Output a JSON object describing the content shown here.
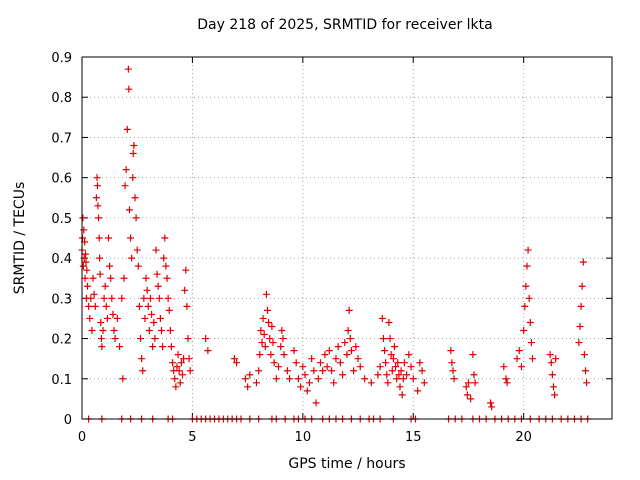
{
  "chart_data": {
    "type": "scatter",
    "title": "Day 218 of 2025, SRMTID for receiver lkta",
    "xlabel": "GPS time / hours",
    "ylabel": "SRMTID / TECUs",
    "xlim": [
      0,
      24
    ],
    "ylim": [
      0,
      0.9
    ],
    "xticks": [
      0,
      5,
      10,
      15,
      20
    ],
    "yticks": [
      0,
      0.1,
      0.2,
      0.3,
      0.4,
      0.5,
      0.6,
      0.7,
      0.8,
      0.9
    ],
    "ytick_labels": [
      "0",
      "0.1",
      "0.2",
      "0.3",
      "0.4",
      "0.5",
      "0.6",
      "0.7",
      "0.8",
      "0.9"
    ],
    "grid": true,
    "marker": "+",
    "color": "#e00000",
    "series": [
      {
        "name": "SRMTID",
        "points": [
          [
            0.0,
            0.42
          ],
          [
            0.02,
            0.45
          ],
          [
            0.04,
            0.5
          ],
          [
            0.06,
            0.38
          ],
          [
            0.08,
            0.47
          ],
          [
            0.1,
            0.4
          ],
          [
            0.12,
            0.44
          ],
          [
            0.14,
            0.35
          ],
          [
            0.16,
            0.41
          ],
          [
            0.18,
            0.39
          ],
          [
            0.2,
            0.3
          ],
          [
            0.22,
            0.37
          ],
          [
            0.25,
            0.33
          ],
          [
            0.3,
            0.28
          ],
          [
            0.35,
            0.25
          ],
          [
            0.4,
            0.3
          ],
          [
            0.45,
            0.22
          ],
          [
            0.5,
            0.35
          ],
          [
            0.55,
            0.31
          ],
          [
            0.6,
            0.28
          ],
          [
            0.65,
            0.55
          ],
          [
            0.68,
            0.6
          ],
          [
            0.7,
            0.58
          ],
          [
            0.72,
            0.53
          ],
          [
            0.75,
            0.5
          ],
          [
            0.78,
            0.45
          ],
          [
            0.8,
            0.4
          ],
          [
            0.82,
            0.36
          ],
          [
            0.85,
            0.24
          ],
          [
            0.88,
            0.2
          ],
          [
            0.9,
            0.18
          ],
          [
            0.95,
            0.22
          ],
          [
            1.0,
            0.3
          ],
          [
            1.05,
            0.33
          ],
          [
            1.1,
            0.28
          ],
          [
            1.15,
            0.25
          ],
          [
            1.2,
            0.45
          ],
          [
            1.25,
            0.38
          ],
          [
            1.3,
            0.35
          ],
          [
            1.35,
            0.3
          ],
          [
            1.4,
            0.26
          ],
          [
            1.45,
            0.22
          ],
          [
            1.5,
            0.2
          ],
          [
            1.6,
            0.25
          ],
          [
            1.7,
            0.18
          ],
          [
            1.8,
            0.3
          ],
          [
            1.85,
            0.1
          ],
          [
            1.9,
            0.35
          ],
          [
            1.95,
            0.58
          ],
          [
            2.0,
            0.62
          ],
          [
            2.05,
            0.72
          ],
          [
            2.1,
            0.87
          ],
          [
            2.12,
            0.82
          ],
          [
            2.15,
            0.52
          ],
          [
            2.2,
            0.45
          ],
          [
            2.25,
            0.4
          ],
          [
            2.3,
            0.6
          ],
          [
            2.32,
            0.66
          ],
          [
            2.35,
            0.68
          ],
          [
            2.4,
            0.55
          ],
          [
            2.45,
            0.5
          ],
          [
            2.5,
            0.42
          ],
          [
            2.55,
            0.38
          ],
          [
            2.6,
            0.28
          ],
          [
            2.65,
            0.2
          ],
          [
            2.7,
            0.15
          ],
          [
            2.75,
            0.12
          ],
          [
            2.8,
            0.3
          ],
          [
            2.85,
            0.25
          ],
          [
            2.9,
            0.35
          ],
          [
            2.95,
            0.32
          ],
          [
            3.0,
            0.28
          ],
          [
            3.05,
            0.22
          ],
          [
            3.1,
            0.3
          ],
          [
            3.15,
            0.26
          ],
          [
            3.2,
            0.18
          ],
          [
            3.25,
            0.24
          ],
          [
            3.3,
            0.2
          ],
          [
            3.35,
            0.42
          ],
          [
            3.4,
            0.36
          ],
          [
            3.45,
            0.33
          ],
          [
            3.5,
            0.3
          ],
          [
            3.55,
            0.25
          ],
          [
            3.6,
            0.22
          ],
          [
            3.65,
            0.18
          ],
          [
            3.7,
            0.4
          ],
          [
            3.75,
            0.45
          ],
          [
            3.8,
            0.38
          ],
          [
            3.85,
            0.35
          ],
          [
            3.9,
            0.3
          ],
          [
            3.95,
            0.27
          ],
          [
            4.0,
            0.22
          ],
          [
            4.05,
            0.18
          ],
          [
            4.1,
            0.14
          ],
          [
            4.15,
            0.12
          ],
          [
            4.2,
            0.1
          ],
          [
            4.25,
            0.08
          ],
          [
            4.3,
            0.13
          ],
          [
            4.35,
            0.16
          ],
          [
            4.4,
            0.12
          ],
          [
            4.45,
            0.09
          ],
          [
            4.5,
            0.14
          ],
          [
            4.55,
            0.11
          ],
          [
            4.6,
            0.15
          ],
          [
            4.65,
            0.32
          ],
          [
            4.7,
            0.37
          ],
          [
            4.75,
            0.28
          ],
          [
            4.8,
            0.2
          ],
          [
            4.85,
            0.15
          ],
          [
            4.9,
            0.12
          ],
          [
            5.6,
            0.2
          ],
          [
            5.7,
            0.17
          ],
          [
            6.9,
            0.15
          ],
          [
            7.0,
            0.14
          ],
          [
            7.4,
            0.1
          ],
          [
            7.5,
            0.08
          ],
          [
            7.6,
            0.11
          ],
          [
            7.9,
            0.09
          ],
          [
            8.0,
            0.12
          ],
          [
            8.05,
            0.16
          ],
          [
            8.1,
            0.22
          ],
          [
            8.15,
            0.19
          ],
          [
            8.2,
            0.25
          ],
          [
            8.25,
            0.21
          ],
          [
            8.3,
            0.18
          ],
          [
            8.35,
            0.31
          ],
          [
            8.4,
            0.27
          ],
          [
            8.45,
            0.24
          ],
          [
            8.5,
            0.2
          ],
          [
            8.55,
            0.16
          ],
          [
            8.6,
            0.23
          ],
          [
            8.65,
            0.19
          ],
          [
            8.7,
            0.14
          ],
          [
            8.8,
            0.1
          ],
          [
            8.9,
            0.13
          ],
          [
            9.0,
            0.18
          ],
          [
            9.05,
            0.22
          ],
          [
            9.1,
            0.2
          ],
          [
            9.15,
            0.16
          ],
          [
            9.3,
            0.12
          ],
          [
            9.4,
            0.1
          ],
          [
            9.6,
            0.17
          ],
          [
            9.7,
            0.14
          ],
          [
            9.8,
            0.1
          ],
          [
            9.9,
            0.08
          ],
          [
            10.0,
            0.13
          ],
          [
            10.1,
            0.11
          ],
          [
            10.2,
            0.07
          ],
          [
            10.3,
            0.09
          ],
          [
            10.4,
            0.15
          ],
          [
            10.5,
            0.12
          ],
          [
            10.6,
            0.04
          ],
          [
            10.7,
            0.1
          ],
          [
            10.8,
            0.14
          ],
          [
            10.9,
            0.12
          ],
          [
            11.0,
            0.16
          ],
          [
            11.1,
            0.13
          ],
          [
            11.2,
            0.17
          ],
          [
            11.3,
            0.12
          ],
          [
            11.4,
            0.09
          ],
          [
            11.5,
            0.15
          ],
          [
            11.6,
            0.18
          ],
          [
            11.7,
            0.14
          ],
          [
            11.8,
            0.11
          ],
          [
            11.9,
            0.19
          ],
          [
            12.0,
            0.16
          ],
          [
            12.05,
            0.22
          ],
          [
            12.1,
            0.27
          ],
          [
            12.15,
            0.2
          ],
          [
            12.2,
            0.17
          ],
          [
            12.3,
            0.12
          ],
          [
            12.4,
            0.18
          ],
          [
            12.5,
            0.15
          ],
          [
            12.6,
            0.13
          ],
          [
            12.8,
            0.1
          ],
          [
            13.1,
            0.09
          ],
          [
            13.4,
            0.11
          ],
          [
            13.5,
            0.13
          ],
          [
            13.6,
            0.25
          ],
          [
            13.65,
            0.2
          ],
          [
            13.7,
            0.17
          ],
          [
            13.75,
            0.14
          ],
          [
            13.8,
            0.11
          ],
          [
            13.85,
            0.09
          ],
          [
            13.9,
            0.24
          ],
          [
            13.95,
            0.2
          ],
          [
            14.0,
            0.16
          ],
          [
            14.05,
            0.12
          ],
          [
            14.1,
            0.15
          ],
          [
            14.15,
            0.18
          ],
          [
            14.2,
            0.13
          ],
          [
            14.25,
            0.1
          ],
          [
            14.3,
            0.14
          ],
          [
            14.35,
            0.11
          ],
          [
            14.4,
            0.08
          ],
          [
            14.45,
            0.12
          ],
          [
            14.5,
            0.06
          ],
          [
            14.55,
            0.1
          ],
          [
            14.6,
            0.14
          ],
          [
            14.7,
            0.11
          ],
          [
            14.8,
            0.16
          ],
          [
            14.9,
            0.13
          ],
          [
            15.0,
            0.1
          ],
          [
            15.2,
            0.07
          ],
          [
            15.3,
            0.14
          ],
          [
            15.4,
            0.12
          ],
          [
            15.5,
            0.09
          ],
          [
            16.7,
            0.17
          ],
          [
            16.75,
            0.14
          ],
          [
            16.8,
            0.12
          ],
          [
            16.85,
            0.1
          ],
          [
            17.4,
            0.08
          ],
          [
            17.45,
            0.06
          ],
          [
            17.5,
            0.09
          ],
          [
            17.6,
            0.05
          ],
          [
            17.7,
            0.16
          ],
          [
            17.75,
            0.11
          ],
          [
            17.8,
            0.09
          ],
          [
            18.5,
            0.04
          ],
          [
            18.55,
            0.03
          ],
          [
            19.1,
            0.13
          ],
          [
            19.2,
            0.1
          ],
          [
            19.25,
            0.09
          ],
          [
            19.7,
            0.15
          ],
          [
            19.8,
            0.17
          ],
          [
            19.9,
            0.13
          ],
          [
            20.0,
            0.22
          ],
          [
            20.05,
            0.28
          ],
          [
            20.1,
            0.33
          ],
          [
            20.15,
            0.38
          ],
          [
            20.2,
            0.42
          ],
          [
            20.25,
            0.3
          ],
          [
            20.3,
            0.24
          ],
          [
            20.35,
            0.19
          ],
          [
            20.4,
            0.15
          ],
          [
            21.2,
            0.16
          ],
          [
            21.25,
            0.14
          ],
          [
            21.3,
            0.11
          ],
          [
            21.35,
            0.08
          ],
          [
            21.4,
            0.06
          ],
          [
            21.45,
            0.15
          ],
          [
            22.5,
            0.19
          ],
          [
            22.55,
            0.23
          ],
          [
            22.6,
            0.28
          ],
          [
            22.65,
            0.33
          ],
          [
            22.7,
            0.39
          ],
          [
            22.75,
            0.16
          ],
          [
            22.8,
            0.12
          ],
          [
            22.85,
            0.09
          ],
          [
            0.3,
            0
          ],
          [
            0.9,
            0
          ],
          [
            1.8,
            0
          ],
          [
            2.2,
            0
          ],
          [
            2.7,
            0
          ],
          [
            3.2,
            0
          ],
          [
            3.9,
            0
          ],
          [
            4.1,
            0
          ],
          [
            5.0,
            0
          ],
          [
            5.2,
            0
          ],
          [
            5.4,
            0
          ],
          [
            5.6,
            0
          ],
          [
            5.8,
            0
          ],
          [
            6.0,
            0
          ],
          [
            6.2,
            0
          ],
          [
            6.4,
            0
          ],
          [
            6.6,
            0
          ],
          [
            6.8,
            0
          ],
          [
            7.0,
            0
          ],
          [
            7.2,
            0
          ],
          [
            7.6,
            0
          ],
          [
            8.0,
            0
          ],
          [
            8.6,
            0
          ],
          [
            8.8,
            0
          ],
          [
            9.2,
            0
          ],
          [
            9.6,
            0
          ],
          [
            9.8,
            0
          ],
          [
            10.1,
            0
          ],
          [
            10.4,
            0
          ],
          [
            10.9,
            0
          ],
          [
            11.2,
            0
          ],
          [
            11.5,
            0
          ],
          [
            11.8,
            0
          ],
          [
            12.2,
            0
          ],
          [
            12.6,
            0
          ],
          [
            13.0,
            0
          ],
          [
            13.2,
            0
          ],
          [
            13.5,
            0
          ],
          [
            14.1,
            0
          ],
          [
            14.9,
            0
          ],
          [
            15.1,
            0
          ],
          [
            16.6,
            0
          ],
          [
            16.9,
            0
          ],
          [
            17.2,
            0
          ],
          [
            17.7,
            0
          ],
          [
            18.0,
            0
          ],
          [
            18.3,
            0
          ],
          [
            18.7,
            0
          ],
          [
            19.0,
            0
          ],
          [
            19.3,
            0
          ],
          [
            19.6,
            0
          ],
          [
            19.9,
            0
          ],
          [
            20.3,
            0
          ],
          [
            20.7,
            0
          ],
          [
            21.0,
            0
          ],
          [
            21.3,
            0
          ],
          [
            21.7,
            0
          ],
          [
            22.0,
            0
          ],
          [
            22.3,
            0
          ],
          [
            22.6,
            0
          ],
          [
            22.9,
            0
          ]
        ]
      }
    ]
  }
}
